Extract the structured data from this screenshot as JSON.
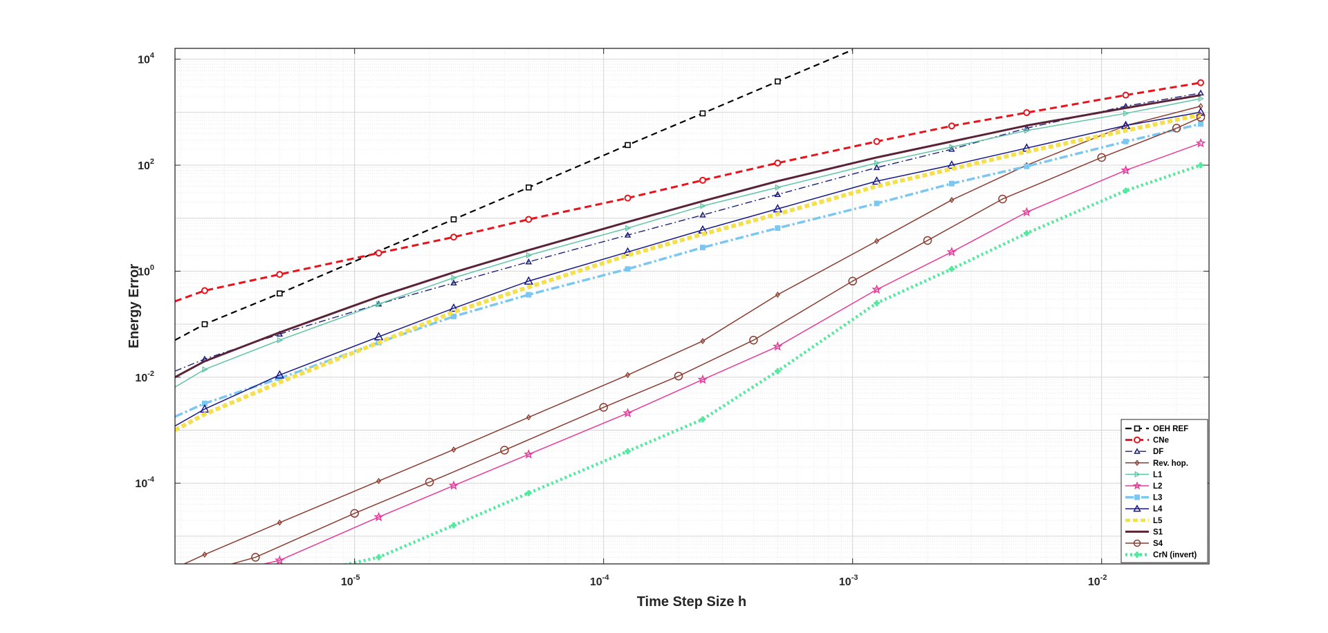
{
  "chart_data": {
    "type": "line",
    "xscale": "log",
    "yscale": "log",
    "xlabel": "Time Step Size h",
    "ylabel": "Energy Error",
    "xlim": [
      1.9e-06,
      0.027
    ],
    "ylim": [
      3e-06,
      16000
    ],
    "x_ticks": [
      1e-05,
      0.0001,
      0.001,
      0.01
    ],
    "x_tick_labels": [
      {
        "base": "10",
        "exp": "-5"
      },
      {
        "base": "10",
        "exp": "-4"
      },
      {
        "base": "10",
        "exp": "-3"
      },
      {
        "base": "10",
        "exp": "-2"
      }
    ],
    "y_ticks": [
      0.0001,
      0.01,
      1,
      100,
      10000
    ],
    "y_tick_labels": [
      {
        "base": "10",
        "exp": "-4"
      },
      {
        "base": "10",
        "exp": "-2"
      },
      {
        "base": "10",
        "exp": "0"
      },
      {
        "base": "10",
        "exp": "2"
      },
      {
        "base": "10",
        "exp": "4"
      }
    ],
    "grid": true,
    "minor_grid": true,
    "legend_position": "bottom-right",
    "series": [
      {
        "name": "OEH REF",
        "color": "#000000",
        "dash": "9,6",
        "width": 2.2,
        "marker": "square",
        "marker_size": 7,
        "x": [
          1.9e-06,
          2.5e-06,
          5e-06,
          1.25e-05,
          2.5e-05,
          5e-05,
          0.000125,
          0.00025,
          0.0005,
          0.001
        ],
        "y": [
          0.05,
          0.1,
          0.38,
          2.4,
          9.5,
          38,
          240,
          950,
          3800,
          15000
        ],
        "marker_x": [
          2.5e-06,
          5e-06,
          2.5e-05,
          5e-05,
          0.000125,
          0.00025,
          0.0005
        ]
      },
      {
        "name": "CNe",
        "color": "#e8121b",
        "dash": "10,6",
        "width": 3,
        "marker": "circle",
        "marker_size": 8,
        "x": [
          1.9e-06,
          2.5e-06,
          5e-06,
          1.25e-05,
          2.5e-05,
          5e-05,
          0.000125,
          0.00025,
          0.0005,
          0.00125,
          0.0025,
          0.005,
          0.0125,
          0.025
        ],
        "y": [
          0.27,
          0.43,
          0.87,
          2.2,
          4.4,
          9.5,
          24,
          52,
          110,
          280,
          550,
          980,
          2100,
          3600
        ]
      },
      {
        "name": "DF",
        "color": "#1c1c7a",
        "dash": "10,4,2,4",
        "width": 1.4,
        "marker": "triangle",
        "marker_size": 7,
        "x": [
          1.9e-06,
          2.5e-06,
          5e-06,
          1.25e-05,
          2.5e-05,
          5e-05,
          0.000125,
          0.00025,
          0.0005,
          0.00125,
          0.0025,
          0.005,
          0.0125,
          0.025
        ],
        "y": [
          0.013,
          0.022,
          0.065,
          0.24,
          0.6,
          1.5,
          4.8,
          11.5,
          28,
          90,
          200,
          500,
          1300,
          2300
        ]
      },
      {
        "name": "Rev. hop.",
        "color": "#8b3a2e",
        "dash": "",
        "width": 1.5,
        "marker": "diamond",
        "marker_size": 7,
        "x": [
          1.9e-06,
          2.5e-06,
          5e-06,
          1.25e-05,
          2.5e-05,
          5e-05,
          0.000125,
          0.00025,
          0.0005,
          0.00125,
          0.0025,
          0.005,
          0.0125,
          0.025
        ],
        "y": [
          2.5e-06,
          4.5e-06,
          1.8e-05,
          0.00011,
          0.00043,
          0.00175,
          0.011,
          0.048,
          0.36,
          3.7,
          22,
          100,
          560,
          1300
        ]
      },
      {
        "name": "L1",
        "color": "#5ec4a6",
        "dash": "",
        "width": 1.5,
        "marker": "triangle-right",
        "marker_size": 7,
        "x": [
          1.9e-06,
          2.5e-06,
          5e-06,
          1.25e-05,
          2.5e-05,
          5e-05,
          0.000125,
          0.00025,
          0.0005,
          0.00125,
          0.0025,
          0.005,
          0.0125,
          0.025
        ],
        "y": [
          0.0065,
          0.014,
          0.05,
          0.24,
          0.75,
          2.0,
          6.5,
          17,
          38,
          110,
          220,
          450,
          950,
          1800
        ]
      },
      {
        "name": "L2",
        "color": "#e8389a",
        "dash": "",
        "width": 1.5,
        "marker": "star",
        "marker_size": 11,
        "x": [
          2.7e-06,
          5e-06,
          1.25e-05,
          2.5e-05,
          5e-05,
          0.000125,
          0.00025,
          0.0005,
          0.00125,
          0.0025,
          0.005,
          0.0125,
          0.025
        ],
        "y": [
          1.8e-06,
          3.5e-06,
          2.3e-05,
          9e-05,
          0.00035,
          0.0021,
          0.009,
          0.038,
          0.45,
          2.3,
          13,
          80,
          260
        ]
      },
      {
        "name": "L3",
        "color": "#7cc6f2",
        "dash": "12,4,3,4",
        "width": 3.5,
        "marker": "square-filled",
        "marker_size": 7,
        "x": [
          1.9e-06,
          2.5e-06,
          5e-06,
          1.25e-05,
          2.5e-05,
          5e-05,
          0.000125,
          0.00025,
          0.0005,
          0.00125,
          0.0025,
          0.005,
          0.0125,
          0.025
        ],
        "y": [
          0.0018,
          0.0032,
          0.0095,
          0.045,
          0.14,
          0.36,
          1.1,
          2.8,
          6.5,
          19,
          45,
          95,
          280,
          600
        ]
      },
      {
        "name": "L4",
        "color": "#16168a",
        "dash": "",
        "width": 1.5,
        "marker": "triangle-big",
        "marker_size": 11,
        "x": [
          1.9e-06,
          2.5e-06,
          5e-06,
          1.25e-05,
          2.5e-05,
          5e-05,
          0.000125,
          0.00025,
          0.0005,
          0.00125,
          0.0025,
          0.005,
          0.0125,
          0.025
        ],
        "y": [
          0.0012,
          0.0025,
          0.011,
          0.058,
          0.2,
          0.65,
          2.3,
          6.0,
          15,
          50,
          100,
          210,
          560,
          1000
        ]
      },
      {
        "name": "L5",
        "color": "#f4e04d",
        "dash": "7,4",
        "width": 6,
        "marker": "none",
        "marker_size": 0,
        "x": [
          1.9e-06,
          2.5e-06,
          5e-06,
          1.25e-05,
          2.5e-05,
          5e-05,
          0.000125,
          0.00025,
          0.0005,
          0.00125,
          0.0025,
          0.005,
          0.0125,
          0.025
        ],
        "y": [
          0.001,
          0.002,
          0.008,
          0.045,
          0.17,
          0.5,
          2.0,
          5.0,
          12,
          40,
          85,
          180,
          450,
          900
        ]
      },
      {
        "name": "S1",
        "color": "#5a2236",
        "dash": "",
        "width": 3,
        "marker": "none",
        "marker_size": 0,
        "x": [
          1.9e-06,
          2.5e-06,
          5e-06,
          1.25e-05,
          2.5e-05,
          5e-05,
          0.000125,
          0.00025,
          0.0005,
          0.00125,
          0.0025,
          0.005,
          0.0125,
          0.025
        ],
        "y": [
          0.01,
          0.02,
          0.07,
          0.33,
          0.95,
          2.5,
          8.5,
          21,
          50,
          140,
          280,
          560,
          1200,
          2100
        ]
      },
      {
        "name": "S4",
        "color": "#8b3a2e",
        "dash": "",
        "width": 1.5,
        "marker": "circle-big",
        "marker_size": 11,
        "x": [
          1.9e-06,
          4e-06,
          1e-05,
          2e-05,
          4e-05,
          0.0001,
          0.0002,
          0.0004,
          0.001,
          0.002,
          0.004,
          0.01,
          0.02,
          0.025
        ],
        "y": [
          1.5e-06,
          4e-06,
          2.7e-05,
          0.000105,
          0.00042,
          0.0027,
          0.0105,
          0.05,
          0.65,
          3.8,
          23,
          140,
          500,
          800
        ]
      },
      {
        "name": "CrN (invert)",
        "color": "#52e89e",
        "dash": "3,4",
        "width": 4.5,
        "marker": "cross-filled",
        "marker_size": 8,
        "x": [
          8e-06,
          1.25e-05,
          2.5e-05,
          5e-05,
          0.000125,
          0.00025,
          0.0005,
          0.00125,
          0.0025,
          0.005,
          0.0125,
          0.025
        ],
        "y": [
          2.5e-06,
          4e-06,
          1.6e-05,
          6.5e-05,
          0.0004,
          0.0016,
          0.013,
          0.25,
          1.1,
          5.2,
          33,
          100
        ]
      }
    ]
  }
}
